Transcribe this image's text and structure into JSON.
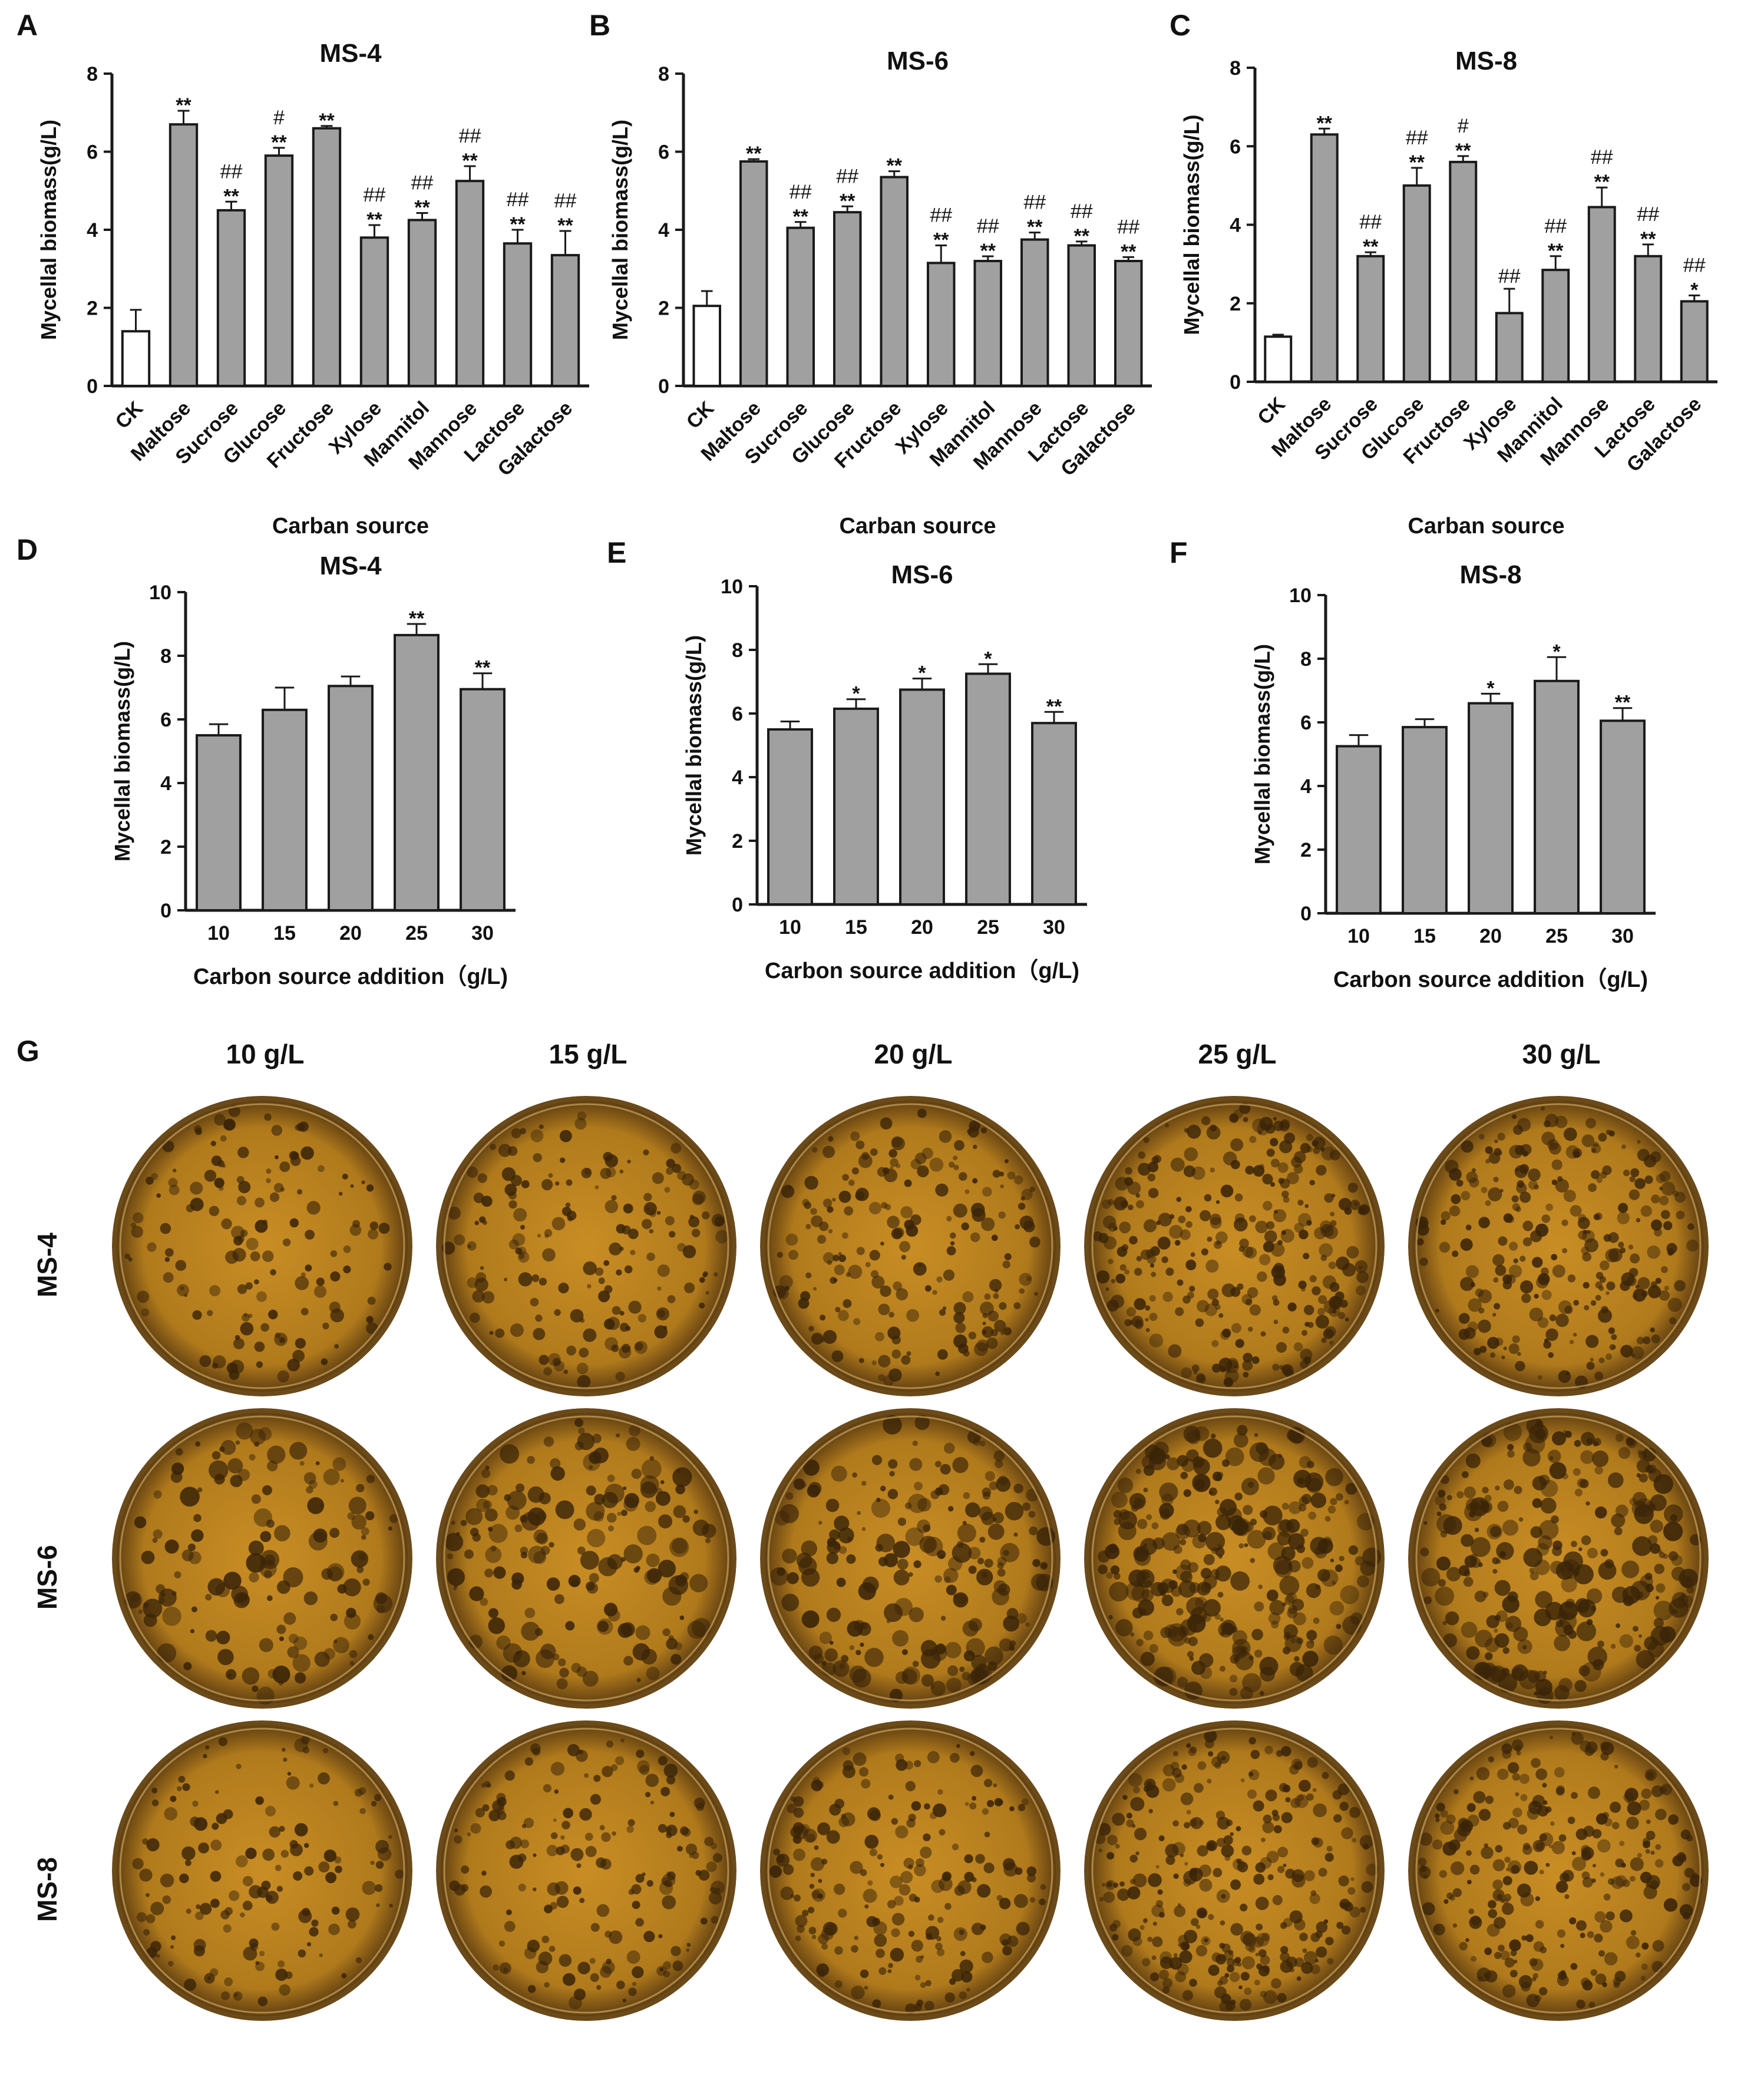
{
  "chart_data": [
    {
      "panel": "A",
      "type": "bar",
      "title": "MS-4",
      "xlabel": "Carban source",
      "ylabel": "Mycellal biomass(g/L)",
      "ylim": [
        0,
        8
      ],
      "yticks": [
        "0",
        "2",
        "4",
        "6",
        "8"
      ],
      "categories": [
        "CK",
        "Maltose",
        "Sucrose",
        "Glucose",
        "Fructose",
        "Xylose",
        "Mannitol",
        "Mannose",
        "Lactose",
        "Galactose"
      ],
      "values": [
        1.4,
        6.7,
        4.5,
        5.9,
        6.6,
        3.8,
        4.25,
        5.25,
        3.65,
        3.35
      ],
      "errors": [
        0.55,
        0.35,
        0.22,
        0.2,
        0.06,
        0.32,
        0.18,
        0.38,
        0.35,
        0.62
      ],
      "star_labels": [
        "",
        "**",
        "**",
        "**",
        "**",
        "**",
        "**",
        "**",
        "**",
        "**"
      ],
      "hash_labels": [
        "",
        "",
        "##",
        "#",
        "",
        "##",
        "##",
        "##",
        "##",
        "##"
      ]
    },
    {
      "panel": "B",
      "type": "bar",
      "title": "MS-6",
      "xlabel": "Carban source",
      "ylabel": "Mycellal biomass(g/L)",
      "ylim": [
        0,
        8
      ],
      "yticks": [
        "0",
        "2",
        "4",
        "6",
        "8"
      ],
      "categories": [
        "CK",
        "Maltose",
        "Sucrose",
        "Glucose",
        "Fructose",
        "Xylose",
        "Mannitol",
        "Mannose",
        "Lactose",
        "Galactose"
      ],
      "values": [
        2.05,
        5.75,
        4.05,
        4.45,
        5.35,
        3.15,
        3.2,
        3.75,
        3.6,
        3.2
      ],
      "errors": [
        0.38,
        0.06,
        0.15,
        0.15,
        0.15,
        0.45,
        0.12,
        0.18,
        0.1,
        0.1
      ],
      "star_labels": [
        "",
        "**",
        "**",
        "**",
        "**",
        "**",
        "**",
        "**",
        "**",
        "**"
      ],
      "hash_labels": [
        "",
        "",
        "##",
        "##",
        "",
        "##",
        "##",
        "##",
        "##",
        "##"
      ]
    },
    {
      "panel": "C",
      "type": "bar",
      "title": "MS-8",
      "xlabel": "Carban source",
      "ylabel": "Mycellal biomass(g/L)",
      "ylim": [
        0,
        8
      ],
      "yticks": [
        "0",
        "2",
        "4",
        "6",
        "8"
      ],
      "categories": [
        "CK",
        "Maltose",
        "Sucrose",
        "Glucose",
        "Fructose",
        "Xylose",
        "Mannitol",
        "Mannose",
        "Lactose",
        "Galactose"
      ],
      "values": [
        1.15,
        6.3,
        3.2,
        5.0,
        5.6,
        1.75,
        2.85,
        4.45,
        3.2,
        2.05
      ],
      "errors": [
        0.05,
        0.15,
        0.1,
        0.45,
        0.15,
        0.62,
        0.35,
        0.5,
        0.3,
        0.15
      ],
      "star_labels": [
        "",
        "**",
        "**",
        "**",
        "**",
        "",
        "**",
        "**",
        "**",
        "*"
      ],
      "hash_labels": [
        "",
        "",
        "##",
        "##",
        "#",
        "##",
        "##",
        "##",
        "##",
        "##"
      ]
    },
    {
      "panel": "D",
      "type": "bar",
      "title": "MS-4",
      "xlabel": "Carbon source addition（g/L)",
      "ylabel": "Mycellal biomass(g/L)",
      "ylim": [
        0,
        10
      ],
      "yticks": [
        "0",
        "2",
        "4",
        "6",
        "8",
        "10"
      ],
      "categories": [
        "10",
        "15",
        "20",
        "25",
        "30"
      ],
      "values": [
        5.5,
        6.3,
        7.05,
        8.65,
        6.95
      ],
      "errors": [
        0.35,
        0.7,
        0.3,
        0.35,
        0.5
      ],
      "star_labels": [
        "",
        "",
        "",
        "**",
        "**"
      ],
      "hash_labels": [
        "",
        "",
        "",
        "",
        ""
      ]
    },
    {
      "panel": "E",
      "type": "bar",
      "title": "MS-6",
      "xlabel": "Carbon source addition（g/L)",
      "ylabel": "Mycellal biomass(g/L)",
      "ylim": [
        0,
        10
      ],
      "yticks": [
        "0",
        "2",
        "4",
        "6",
        "8",
        "10"
      ],
      "categories": [
        "10",
        "15",
        "20",
        "25",
        "30"
      ],
      "values": [
        5.5,
        6.15,
        6.75,
        7.25,
        5.7
      ],
      "errors": [
        0.25,
        0.3,
        0.35,
        0.3,
        0.35
      ],
      "star_labels": [
        "",
        "*",
        "*",
        "*",
        "**"
      ],
      "hash_labels": [
        "",
        "",
        "",
        "",
        ""
      ]
    },
    {
      "panel": "F",
      "type": "bar",
      "title": "MS-8",
      "xlabel": "Carbon source addition（g/L)",
      "ylabel": "Mycellal biomass(g/L)",
      "ylim": [
        0,
        10
      ],
      "yticks": [
        "0",
        "2",
        "4",
        "6",
        "8",
        "10"
      ],
      "categories": [
        "10",
        "15",
        "20",
        "25",
        "30"
      ],
      "values": [
        5.25,
        5.85,
        6.6,
        7.3,
        6.05
      ],
      "errors": [
        0.35,
        0.25,
        0.3,
        0.75,
        0.4
      ],
      "star_labels": [
        "",
        "",
        "*",
        "*",
        "**"
      ],
      "hash_labels": [
        "",
        "",
        "",
        "",
        ""
      ]
    }
  ],
  "panel_g": {
    "letter": "G",
    "columns": [
      "10 g/L",
      "15 g/L",
      "20 g/L",
      "25 g/L",
      "30 g/L"
    ],
    "rows": [
      "MS-4",
      "MS-6",
      "MS-8"
    ]
  },
  "colors": {
    "bar_fill": "#a0a0a0",
    "ck_fill": "#ffffff",
    "stroke": "#1a1a1a",
    "dish_amber": "#b07a1c",
    "dish_dark": "#3a2408"
  }
}
